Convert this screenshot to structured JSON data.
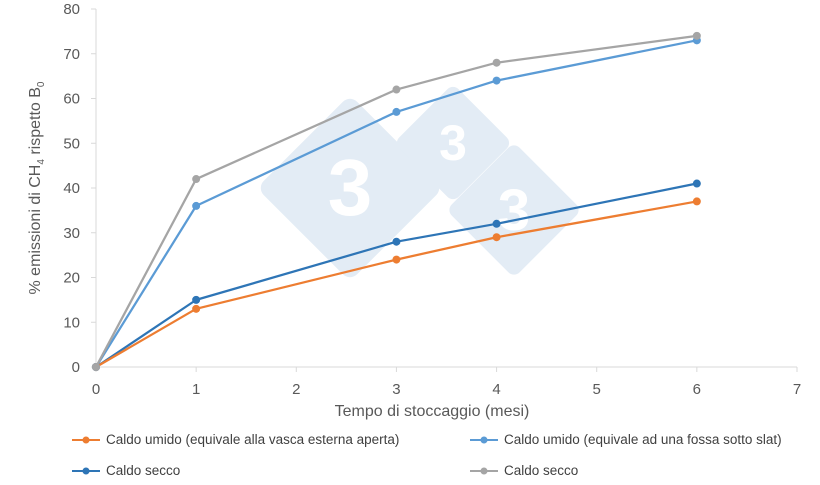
{
  "chart_data": {
    "type": "line",
    "title": "",
    "xlabel": "Tempo di stoccaggio (mesi)",
    "ylabel": "% emissioni di CH4 rispetto B0",
    "ylabel_parts": {
      "a": "% emissioni di CH",
      "sub1": "4",
      "b": " rispetto B",
      "sub2": "0"
    },
    "xlim": [
      0,
      7
    ],
    "ylim": [
      0,
      80
    ],
    "x_ticks": [
      0,
      1,
      2,
      3,
      4,
      5,
      6,
      7
    ],
    "y_ticks": [
      0,
      10,
      20,
      30,
      40,
      50,
      60,
      70,
      80
    ],
    "grid": false,
    "legend_position": "bottom",
    "x": [
      0,
      1,
      3,
      4,
      6
    ],
    "series": [
      {
        "name": "Caldo umido (equivale alla vasca esterna aperta)",
        "color": "#ED7D31",
        "values": [
          0,
          13,
          24,
          29,
          37
        ]
      },
      {
        "name": "Caldo umido (equivale ad una fossa sotto slat)",
        "color": "#5B9BD5",
        "values": [
          0,
          36,
          57,
          64,
          73
        ]
      },
      {
        "name": "Caldo secco",
        "color": "#2E75B6",
        "values": [
          0,
          15,
          28,
          32,
          41
        ]
      },
      {
        "name": "Caldo secco",
        "color": "#A5A5A5",
        "values": [
          0,
          42,
          62,
          68,
          74
        ]
      }
    ]
  },
  "legend": {
    "items": [
      {
        "label": "Caldo umido (equivale alla vasca esterna aperta)",
        "color": "#ED7D31"
      },
      {
        "label": "Caldo umido (equivale ad una fossa sotto slat)",
        "color": "#5B9BD5"
      },
      {
        "label": "Caldo secco",
        "color": "#2E75B6"
      },
      {
        "label": "Caldo secco",
        "color": "#A5A5A5"
      }
    ]
  },
  "watermark": {
    "glyph": "3",
    "color": "#E3ECF5"
  },
  "axis_color": "#D9D9D9"
}
